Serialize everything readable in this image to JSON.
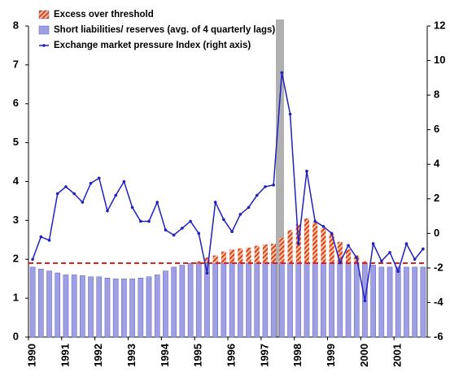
{
  "chart_data": {
    "type": "bar-line",
    "categories": [
      "1990",
      null,
      null,
      null,
      "1991",
      null,
      null,
      null,
      "1992",
      null,
      null,
      null,
      "1993",
      null,
      null,
      null,
      "1994",
      null,
      null,
      null,
      "1995",
      null,
      null,
      null,
      "1996",
      null,
      null,
      null,
      "1997",
      null,
      null,
      null,
      "1998",
      null,
      null,
      null,
      "1999",
      null,
      null,
      null,
      "2000",
      null,
      null,
      null,
      "2001",
      null,
      null,
      null
    ],
    "series": [
      {
        "name": "Excess over threshold",
        "color": "#e0401a",
        "stack": true,
        "values": [
          null,
          null,
          null,
          null,
          null,
          null,
          null,
          null,
          null,
          null,
          null,
          null,
          null,
          null,
          null,
          null,
          null,
          null,
          null,
          null,
          0.05,
          0.15,
          0.2,
          0.3,
          0.35,
          0.38,
          0.4,
          0.45,
          0.48,
          0.5,
          0.65,
          0.85,
          1.0,
          1.15,
          1.05,
          0.9,
          0.75,
          0.55,
          0.35,
          0.2,
          0.05,
          null,
          null,
          null,
          null,
          null,
          null,
          null
        ]
      },
      {
        "name": "Short liabilities/ reserves (avg. of 4 quarterly lags)",
        "color": "#9f9fe6",
        "values": [
          1.8,
          1.75,
          1.7,
          1.65,
          1.6,
          1.6,
          1.58,
          1.55,
          1.55,
          1.52,
          1.5,
          1.5,
          1.5,
          1.52,
          1.55,
          1.6,
          1.7,
          1.8,
          1.85,
          1.9,
          1.9,
          1.9,
          1.9,
          1.9,
          1.9,
          1.9,
          1.9,
          1.9,
          1.9,
          1.9,
          1.9,
          1.9,
          1.9,
          1.9,
          1.9,
          1.9,
          1.9,
          1.9,
          1.9,
          1.9,
          1.9,
          1.85,
          1.8,
          1.8,
          1.8,
          1.8,
          1.8,
          1.8
        ]
      },
      {
        "name": "Exchange market pressure Index (right axis)",
        "color": "#2020c0",
        "axis": "y2",
        "values": [
          -1.5,
          -0.2,
          -0.4,
          2.3,
          2.7,
          2.3,
          1.8,
          2.9,
          3.2,
          1.3,
          2.2,
          3.0,
          1.5,
          0.7,
          0.7,
          1.8,
          0.2,
          -0.1,
          0.3,
          0.7,
          0,
          -2.3,
          1.8,
          0.8,
          0.1,
          1.1,
          1.5,
          2.2,
          2.7,
          2.8,
          9.3,
          6.9,
          -0.6,
          3.6,
          0.7,
          0.4,
          0.0,
          -1.7,
          -0.7,
          -1.4,
          -3.9,
          -0.6,
          -1.6,
          -1.1,
          -2.2,
          -0.6,
          -1.5,
          -0.9
        ]
      }
    ],
    "threshold": 1.9,
    "threshold_color": "#e02020",
    "ylim": [
      0,
      8
    ],
    "yticks": [
      0,
      1,
      2,
      3,
      4,
      5,
      6,
      7,
      8
    ],
    "y2lim": [
      -6,
      12
    ],
    "y2ticks": [
      -6,
      -4,
      -2,
      0,
      2,
      4,
      6,
      8,
      10,
      12
    ]
  }
}
